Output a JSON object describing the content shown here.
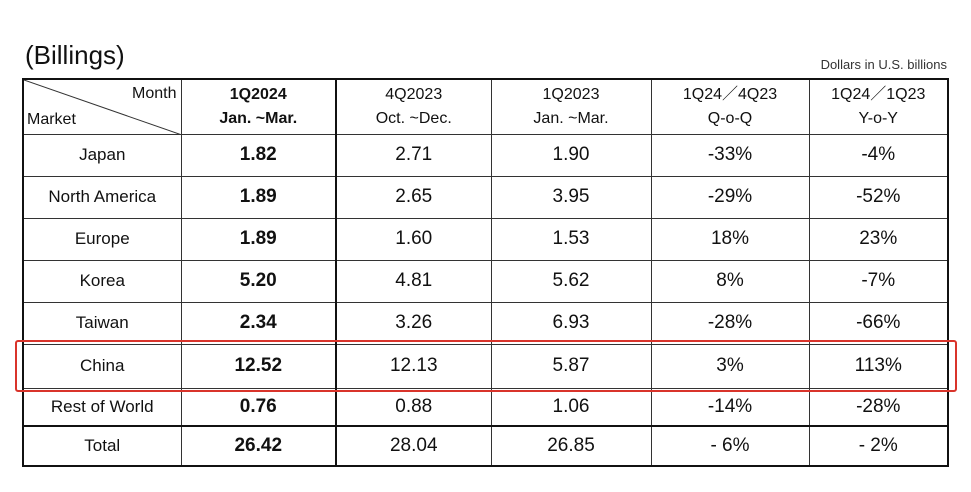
{
  "header": {
    "title": "(Billings)",
    "unit_note": "Dollars in U.S. billions"
  },
  "table": {
    "corner": {
      "top": "Month",
      "bottom": "Market"
    },
    "columns": [
      {
        "line1": "1Q2024",
        "line2": "Jan. ~Mar."
      },
      {
        "line1": "4Q2023",
        "line2": "Oct. ~Dec."
      },
      {
        "line1": "1Q2023",
        "line2": "Jan. ~Mar."
      },
      {
        "line1": "1Q24／4Q23",
        "line2": "Q-o-Q"
      },
      {
        "line1": "1Q24／1Q23",
        "line2": "Y-o-Y"
      }
    ],
    "rows": [
      [
        "Japan",
        "1.82",
        "2.71",
        "1.90",
        "-33%",
        "-4%"
      ],
      [
        "North America",
        "1.89",
        "2.65",
        "3.95",
        "-29%",
        "-52%"
      ],
      [
        "Europe",
        "1.89",
        "1.60",
        "1.53",
        "18%",
        "23%"
      ],
      [
        "Korea",
        "5.20",
        "4.81",
        "5.62",
        "8%",
        "-7%"
      ],
      [
        "Taiwan",
        "2.34",
        "3.26",
        "6.93",
        "-28%",
        "-66%"
      ],
      [
        "China",
        "12.52",
        "12.13",
        "5.87",
        "3%",
        "113%"
      ],
      [
        "Rest of World",
        "0.76",
        "0.88",
        "1.06",
        "-14%",
        "-28%"
      ],
      [
        "Total",
        "26.42",
        "28.04",
        "26.85",
        "- 6%",
        "- 2%"
      ]
    ]
  }
}
